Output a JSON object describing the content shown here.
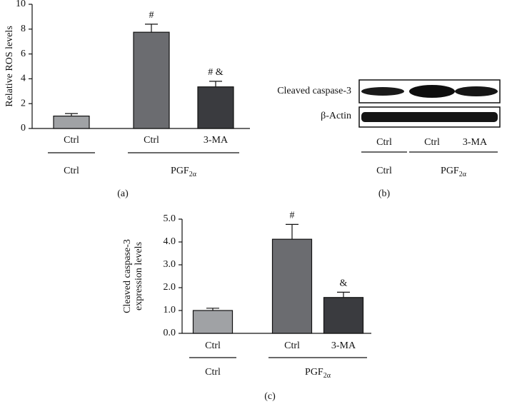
{
  "chart_data": [
    {
      "type": "bar",
      "panel_label": "(a)",
      "ylabel": [
        "Relative ROS levels"
      ],
      "categories": [
        "Ctrl",
        "Ctrl",
        "3-MA"
      ],
      "groups": [
        {
          "label": "Ctrl",
          "categories": 1
        },
        {
          "label": "PGF",
          "subscript": "2α",
          "categories": 2
        }
      ],
      "values": [
        1.0,
        7.75,
        3.35
      ],
      "errors": [
        0.2,
        0.65,
        0.45
      ],
      "colors": [
        "#a0a2a5",
        "#6b6c70",
        "#3a3b3f"
      ],
      "annotations": [
        {
          "category_index": 1,
          "text": "#"
        },
        {
          "category_index": 2,
          "text": "# &"
        }
      ],
      "ylim": [
        0,
        10
      ],
      "yticks": [
        0,
        2,
        4,
        6,
        8,
        10
      ]
    },
    {
      "type": "bar",
      "panel_label": "(c)",
      "ylabel": [
        "Cleaved caspase-3",
        "expression levels"
      ],
      "categories": [
        "Ctrl",
        "Ctrl",
        "3-MA"
      ],
      "groups": [
        {
          "label": "Ctrl",
          "categories": 1
        },
        {
          "label": "PGF",
          "subscript": "2α",
          "categories": 2
        }
      ],
      "values": [
        1.0,
        4.12,
        1.57
      ],
      "errors": [
        0.1,
        0.65,
        0.23
      ],
      "colors": [
        "#a0a2a5",
        "#6b6c70",
        "#3a3b3f"
      ],
      "annotations": [
        {
          "category_index": 1,
          "text": "#"
        },
        {
          "category_index": 2,
          "text": "&"
        }
      ],
      "ylim": [
        0,
        5
      ],
      "yticks": [
        {
          "value": 0,
          "label": "0.0"
        },
        {
          "value": 1,
          "label": "1.0"
        },
        {
          "value": 2,
          "label": "2.0"
        },
        {
          "value": 3,
          "label": "3.0"
        },
        {
          "value": 4,
          "label": "4.0"
        },
        {
          "value": 5,
          "label": "5.0"
        }
      ]
    }
  ],
  "blot": {
    "panel_label": "(b)",
    "rows": [
      "Cleaved caspase-3",
      "β-Actin"
    ],
    "lanes": [
      "Ctrl",
      "Ctrl",
      "3-MA"
    ],
    "groups": [
      {
        "label": "Ctrl",
        "categories": 1
      },
      {
        "label": "PGF",
        "subscript": "2α",
        "categories": 2
      }
    ]
  }
}
